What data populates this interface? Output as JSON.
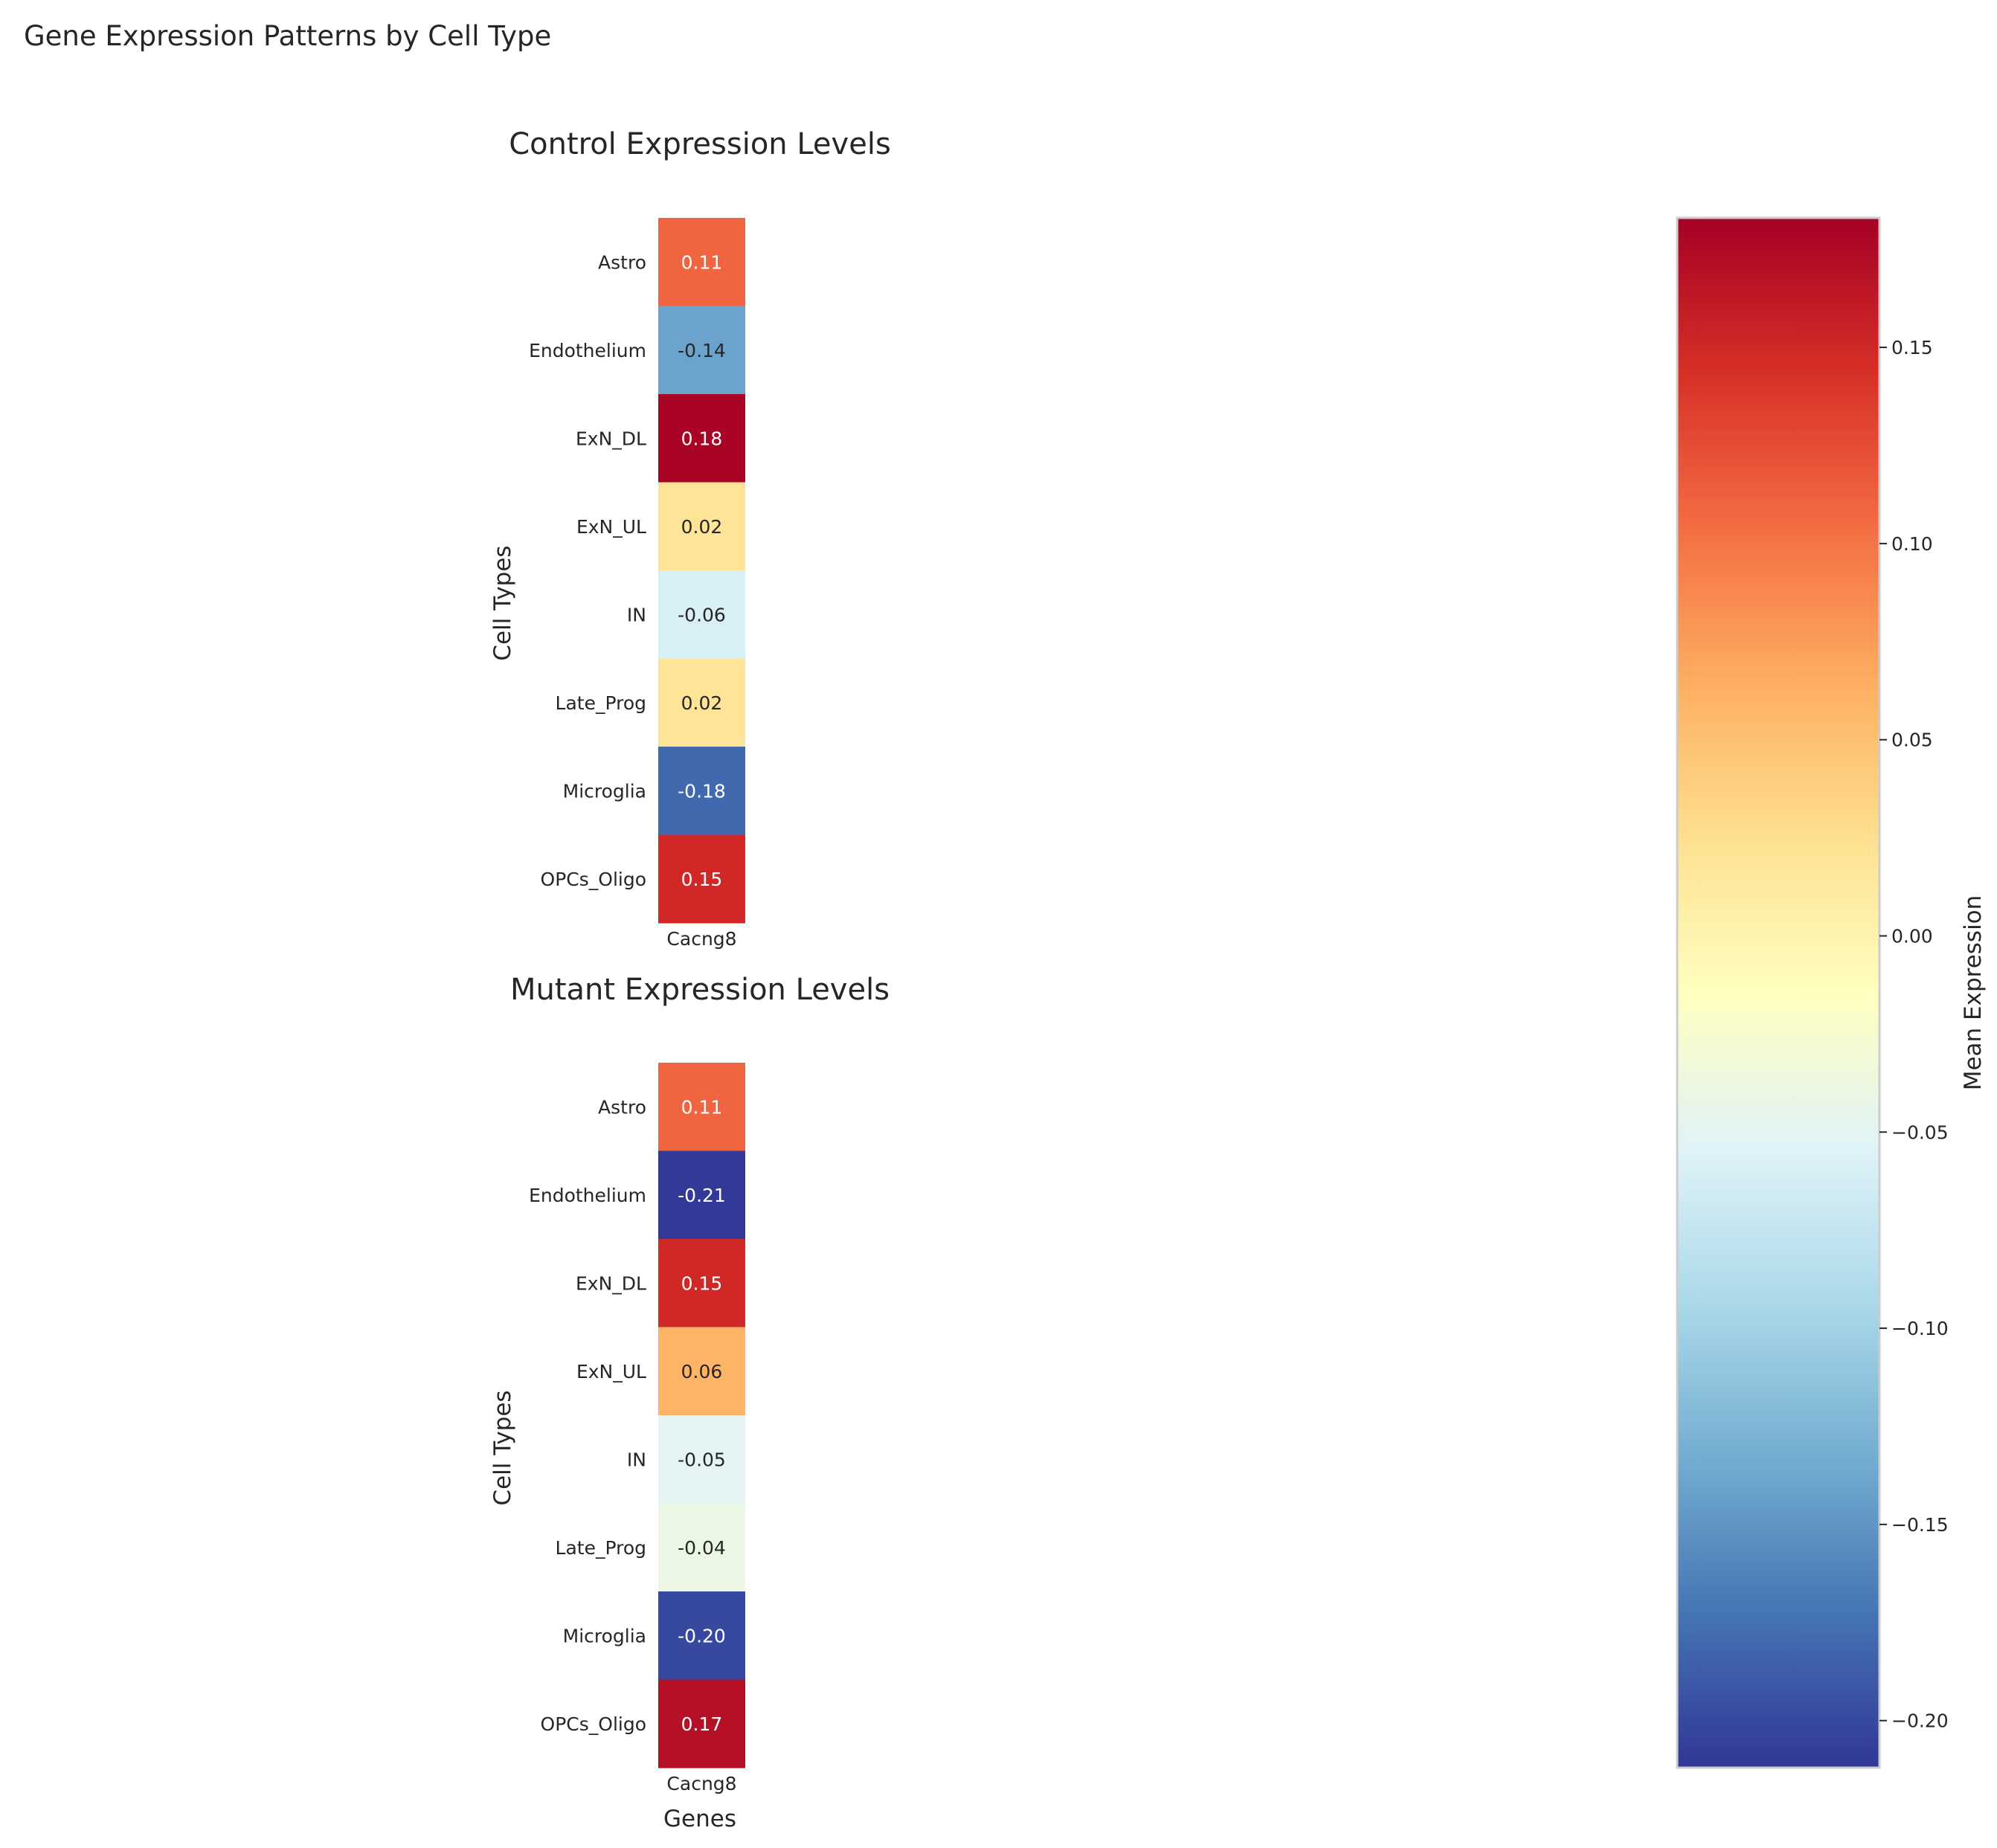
{
  "figure": {
    "suptitle": "Gene Expression Patterns by Cell Type"
  },
  "chart_data": [
    {
      "type": "heatmap",
      "title": "Control Expression Levels",
      "ylabel": "Cell Types",
      "xlabel": "",
      "columns": [
        "Cacng8"
      ],
      "rows": [
        "Astro",
        "Endothelium",
        "ExN_DL",
        "ExN_UL",
        "IN",
        "Late_Prog",
        "Microglia",
        "OPCs_Oligo"
      ],
      "values": [
        0.11,
        -0.14,
        0.18,
        0.02,
        -0.06,
        0.02,
        -0.18,
        0.15
      ],
      "value_labels": [
        "0.11",
        "-0.14",
        "0.18",
        "0.02",
        "-0.06",
        "0.02",
        "-0.18",
        "0.15"
      ]
    },
    {
      "type": "heatmap",
      "title": "Mutant Expression Levels",
      "ylabel": "Cell Types",
      "xlabel": "Genes",
      "columns": [
        "Cacng8"
      ],
      "rows": [
        "Astro",
        "Endothelium",
        "ExN_DL",
        "ExN_UL",
        "IN",
        "Late_Prog",
        "Microglia",
        "OPCs_Oligo"
      ],
      "values": [
        0.11,
        -0.21,
        0.15,
        0.06,
        -0.05,
        -0.04,
        -0.2,
        0.17
      ],
      "value_labels": [
        "0.11",
        "-0.21",
        "0.15",
        "0.06",
        "-0.05",
        "-0.04",
        "-0.20",
        "0.17"
      ]
    }
  ],
  "colorbar": {
    "label": "Mean Expression",
    "colormap": "RdYlBu_r",
    "vmin": -0.212,
    "vmax": 0.183,
    "ticks": [
      0.15,
      0.1,
      0.05,
      0.0,
      -0.05,
      -0.1,
      -0.15,
      -0.2
    ],
    "tick_labels": [
      "0.15",
      "0.10",
      "0.05",
      "0.00",
      "−0.05",
      "−0.10",
      "−0.15",
      "−0.20"
    ]
  },
  "colors": {
    "scale": [
      "#313695",
      "#4575b4",
      "#74add1",
      "#abd9e9",
      "#e0f3f8",
      "#ffffbf",
      "#fee090",
      "#fdae61",
      "#f46d43",
      "#d73027",
      "#a50026"
    ]
  }
}
